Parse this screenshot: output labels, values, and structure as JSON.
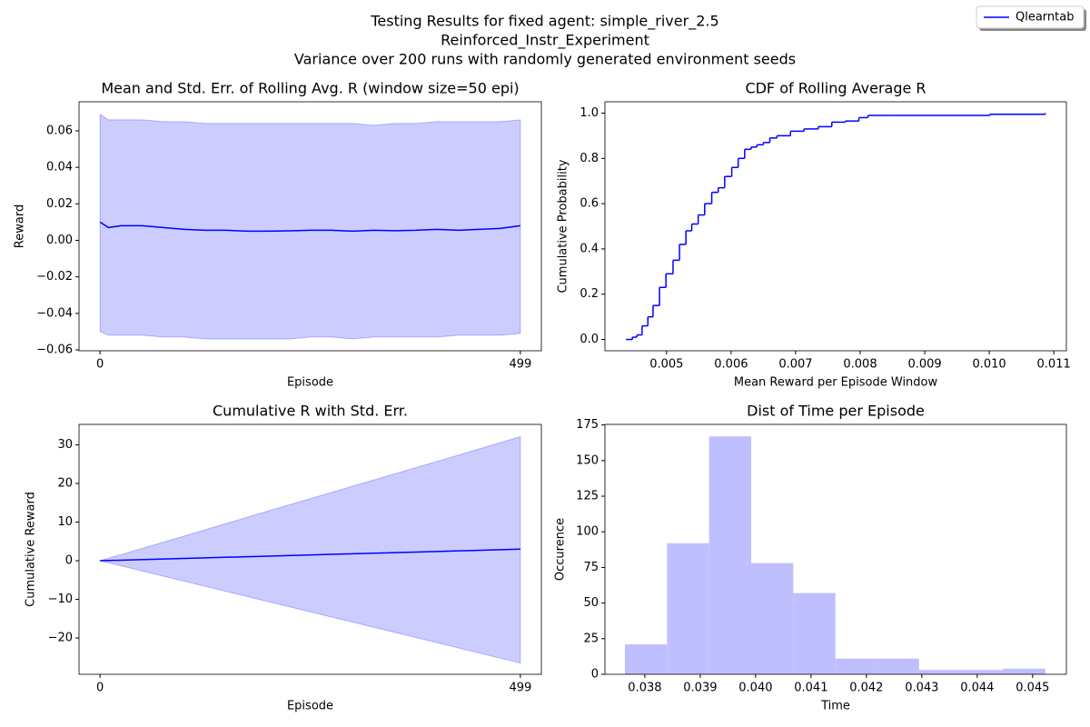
{
  "figure": {
    "title": [
      "Testing Results for fixed agent: simple_river_2.5",
      "Reinforced_Instr_Experiment",
      "Variance over 200 runs with randomly generated environment seeds"
    ]
  },
  "chart_data": [
    {
      "type": "line",
      "title": "Mean and Std. Err. of Rolling Avg. R (window size=50 epi)",
      "xlabel": "Episode",
      "ylabel": "Reward",
      "x": [
        0,
        10,
        25,
        50,
        75,
        100,
        125,
        150,
        175,
        200,
        225,
        250,
        275,
        300,
        325,
        350,
        375,
        400,
        425,
        450,
        475,
        499
      ],
      "series": [
        {
          "name": "Qlearntab",
          "color": "#0000ff",
          "values": [
            0.01,
            0.007,
            0.008,
            0.008,
            0.007,
            0.006,
            0.0055,
            0.0055,
            0.005,
            0.005,
            0.0052,
            0.0055,
            0.0055,
            0.005,
            0.0055,
            0.0053,
            0.0055,
            0.006,
            0.0055,
            0.006,
            0.0065,
            0.008
          ],
          "upper": [
            0.069,
            0.066,
            0.066,
            0.066,
            0.065,
            0.065,
            0.064,
            0.064,
            0.064,
            0.064,
            0.064,
            0.064,
            0.064,
            0.064,
            0.063,
            0.064,
            0.064,
            0.065,
            0.065,
            0.065,
            0.065,
            0.066
          ],
          "lower": [
            -0.05,
            -0.052,
            -0.052,
            -0.052,
            -0.053,
            -0.053,
            -0.054,
            -0.054,
            -0.054,
            -0.054,
            -0.054,
            -0.053,
            -0.053,
            -0.054,
            -0.053,
            -0.053,
            -0.053,
            -0.053,
            -0.052,
            -0.052,
            -0.052,
            -0.051
          ]
        }
      ],
      "xlim": [
        -24.95,
        523.95
      ],
      "xticks": [
        0,
        499
      ],
      "ylim": [
        -0.0605,
        0.0759
      ],
      "yticks": [
        {
          "value": -0.06,
          "label": "−0.06"
        },
        {
          "value": -0.04,
          "label": "−0.04"
        },
        {
          "value": -0.02,
          "label": "−0.02"
        },
        {
          "value": 0,
          "label": "0.00"
        },
        0.02,
        0.04,
        0.06
      ]
    },
    {
      "type": "line",
      "step": "post",
      "title": "CDF of Rolling Average R",
      "xlabel": "Mean Reward per Episode Window",
      "ylabel": "Cumulative Probability",
      "x": [
        0.00437,
        0.00447,
        0.00454,
        0.00462,
        0.00471,
        0.00479,
        0.00489,
        0.00499,
        0.0051,
        0.0052,
        0.0053,
        0.00539,
        0.00549,
        0.00559,
        0.0057,
        0.0058,
        0.0059,
        0.00601,
        0.00611,
        0.00621,
        0.00631,
        0.0064,
        0.0065,
        0.0066,
        0.00671,
        0.00692,
        0.00713,
        0.00735,
        0.00756,
        0.00777,
        0.00798,
        0.00812,
        0.00847,
        0.01001,
        0.01087
      ],
      "series": [
        {
          "color": "#0000ff",
          "values": [
            0,
            0.01,
            0.02,
            0.06,
            0.1,
            0.15,
            0.23,
            0.29,
            0.35,
            0.42,
            0.48,
            0.51,
            0.55,
            0.6,
            0.65,
            0.67,
            0.72,
            0.76,
            0.8,
            0.84,
            0.85,
            0.86,
            0.87,
            0.89,
            0.9,
            0.92,
            0.93,
            0.94,
            0.96,
            0.965,
            0.98,
            0.99,
            0.99,
            0.995,
            1.0
          ]
        }
      ],
      "xlim": [
        0.004045,
        0.011195
      ],
      "xticks": [
        0.005,
        0.006,
        0.007,
        0.008,
        0.009,
        {
          "value": 0.01,
          "label": "0.010"
        },
        0.011
      ],
      "ylim": [
        -0.05,
        1.05
      ],
      "yticks": [
        {
          "value": 0,
          "label": "0.0"
        },
        0.2,
        0.4,
        0.6,
        0.8,
        {
          "value": 1,
          "label": "1.0"
        }
      ]
    },
    {
      "type": "line",
      "title": "Cumulative R with Std. Err.",
      "xlabel": "Episode",
      "ylabel": "Cumulative Reward",
      "x": [
        0,
        100,
        200,
        300,
        400,
        499
      ],
      "series": [
        {
          "color": "#0000ff",
          "values": [
            0,
            0.6,
            1.2,
            1.8,
            2.4,
            3.0
          ],
          "upper": [
            0,
            6.4,
            12.9,
            19.3,
            25.7,
            32.1
          ],
          "lower": [
            0,
            -5.3,
            -10.6,
            -15.9,
            -21.2,
            -26.5
          ]
        }
      ],
      "xlim": [
        -24.95,
        523.95
      ],
      "xticks": [
        0,
        499
      ],
      "ylim": [
        -29.4,
        35.3
      ],
      "yticks": [
        {
          "value": -20,
          "label": "−20"
        },
        {
          "value": -10,
          "label": "−10"
        },
        0,
        10,
        20,
        30
      ]
    },
    {
      "type": "histogram",
      "title": "Dist of Time per Episode",
      "xlabel": "Time",
      "ylabel": "Occurence",
      "color": "#bfbfff",
      "bins": [
        0.03764,
        0.0384,
        0.03916,
        0.03992,
        0.04068,
        0.04144,
        0.04219,
        0.04295,
        0.04371,
        0.04447,
        0.04523
      ],
      "values": [
        21,
        92,
        167,
        78,
        57,
        11,
        11,
        3,
        3,
        4
      ],
      "xlim": [
        0.03728,
        0.04561
      ],
      "xticks": [
        0.038,
        0.039,
        {
          "value": 0.04,
          "label": "0.040"
        },
        0.041,
        0.042,
        0.043,
        0.044,
        0.045
      ],
      "ylim": [
        0,
        175.4
      ],
      "yticks": [
        0,
        25,
        50,
        75,
        100,
        125,
        150,
        175
      ]
    }
  ]
}
